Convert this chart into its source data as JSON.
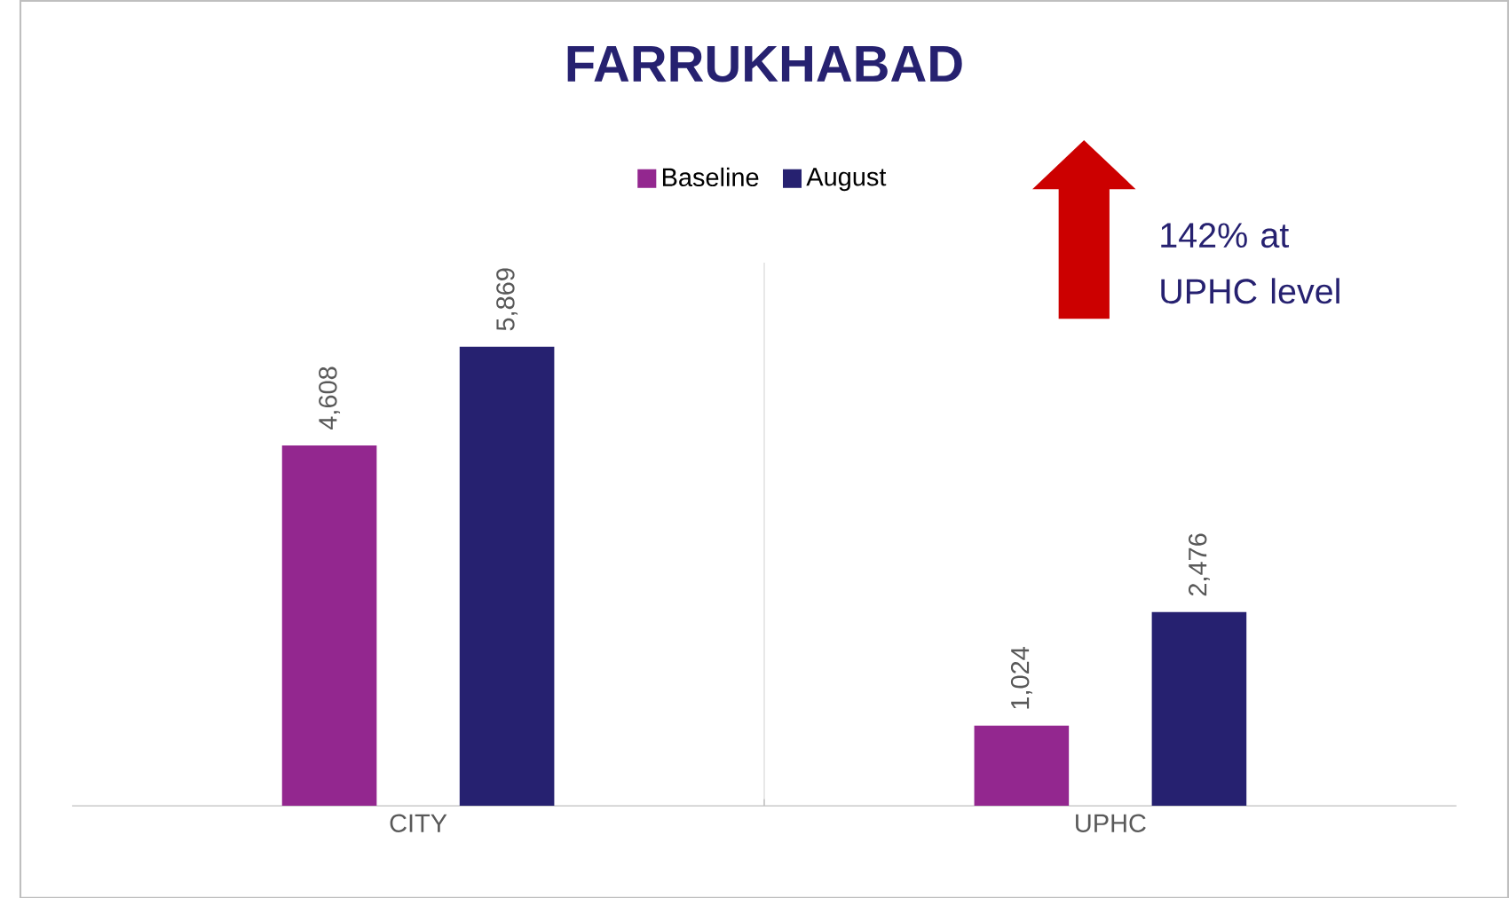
{
  "chart_data": {
    "type": "bar",
    "title": "FARRUKHABAD",
    "categories": [
      "CITY",
      "UPHC"
    ],
    "series": [
      {
        "name": "Baseline",
        "color": "#93278f",
        "values": [
          4608,
          1024
        ],
        "value_labels": [
          "4,608",
          "1,024"
        ]
      },
      {
        "name": "August",
        "color": "#262170",
        "values": [
          5869,
          2476
        ],
        "value_labels": [
          "5,869",
          "2,476"
        ]
      }
    ],
    "legend": "top",
    "annotations": [
      "142% at UPHC level"
    ]
  }
}
